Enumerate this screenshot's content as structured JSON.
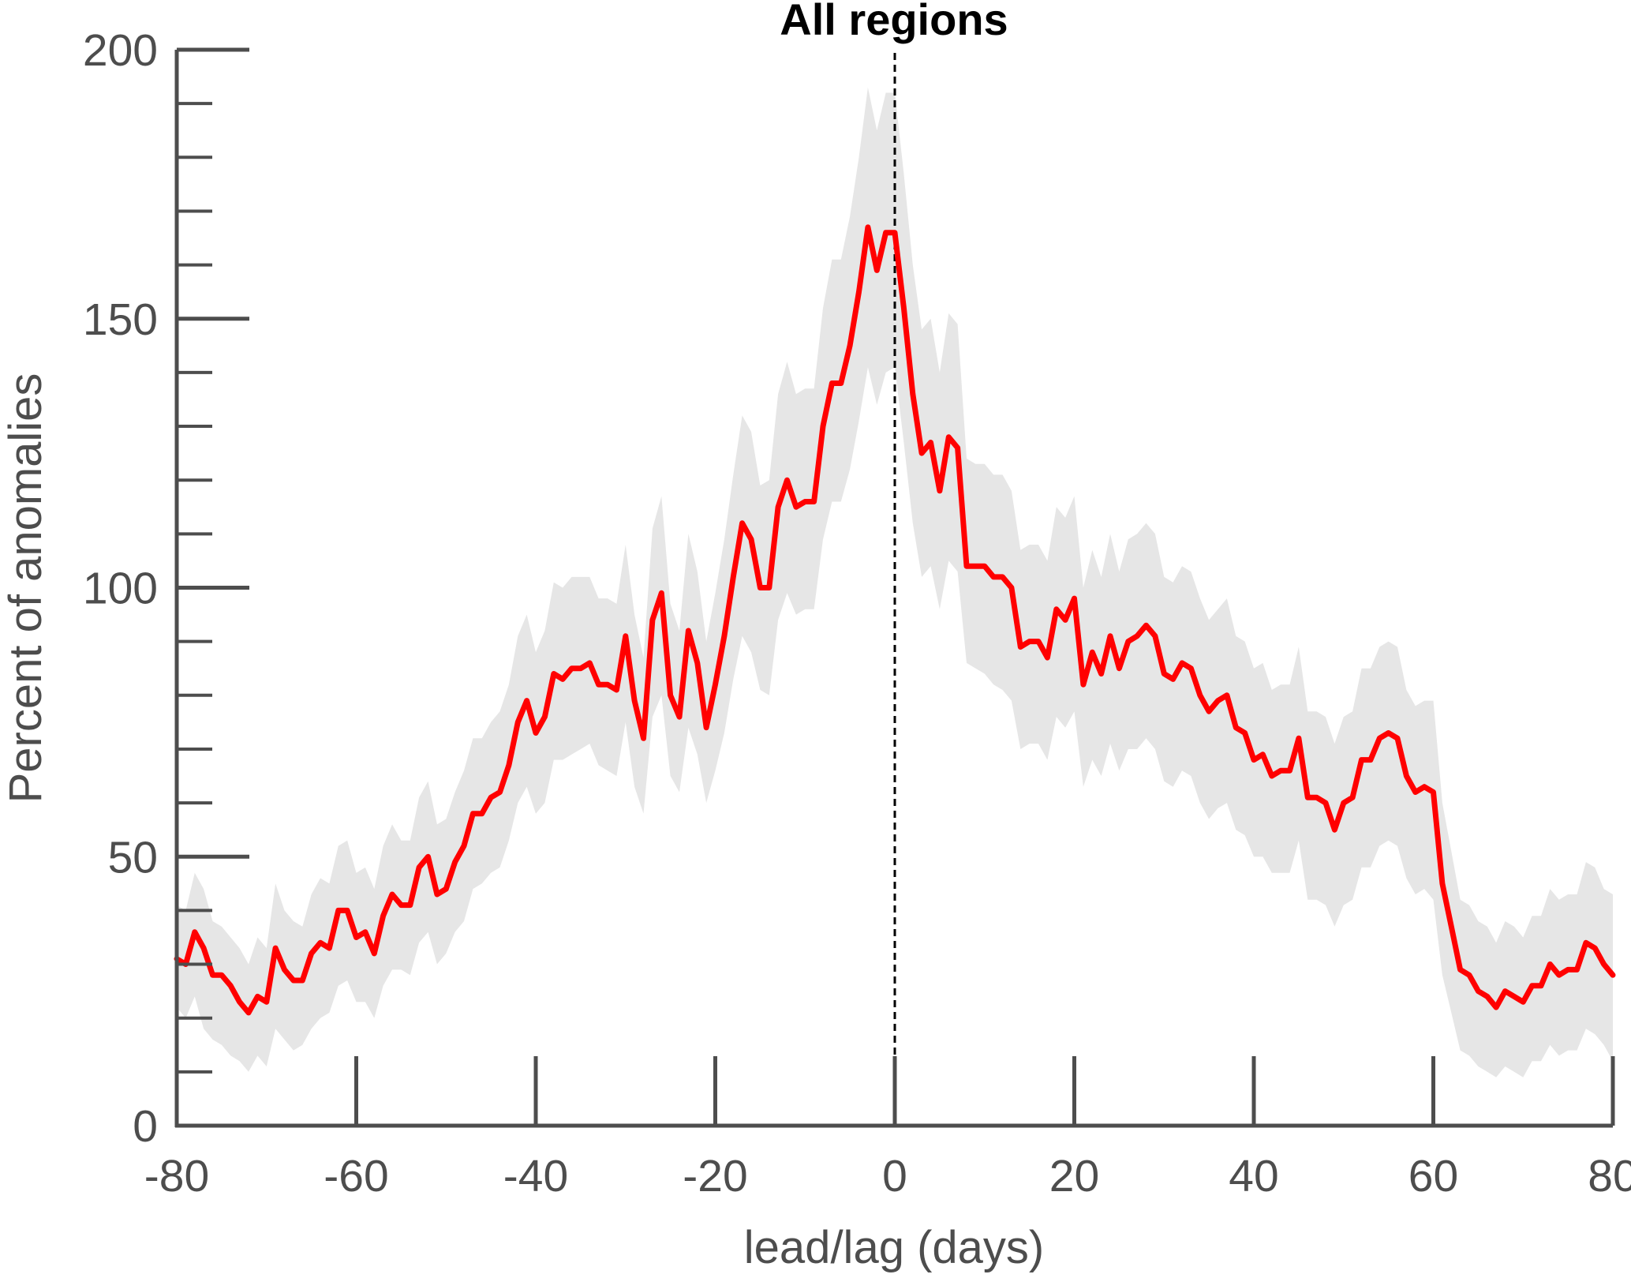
{
  "chart_data": {
    "type": "line",
    "title": "All regions",
    "xlabel": "lead/lag (days)",
    "ylabel": "Percent of anomalies",
    "xlim": [
      -80,
      80
    ],
    "ylim": [
      0,
      200
    ],
    "xticks": [
      -80,
      -60,
      -40,
      -20,
      0,
      20,
      40,
      60,
      80
    ],
    "xtick_labels": [
      "-80",
      "-60",
      "-40",
      "-20",
      "0",
      "20",
      "40",
      "60",
      "80"
    ],
    "yticks": [
      0,
      50,
      100,
      150,
      200
    ],
    "ytick_labels": [
      "0",
      "50",
      "100",
      "150",
      "200"
    ],
    "y_minor_tick_step": 10,
    "grid": false,
    "reference_line": {
      "x": 0,
      "style": "dashed",
      "color": "#000000"
    },
    "series": [
      {
        "line_color": "#ff0000",
        "band_color": "#e6e6e6",
        "x": [
          -80,
          -79,
          -78,
          -77,
          -76,
          -75,
          -74,
          -73,
          -72,
          -71,
          -70,
          -69,
          -68,
          -67,
          -66,
          -65,
          -64,
          -63,
          -62,
          -61,
          -60,
          -59,
          -58,
          -57,
          -56,
          -55,
          -54,
          -53,
          -52,
          -51,
          -50,
          -49,
          -48,
          -47,
          -46,
          -45,
          -44,
          -43,
          -42,
          -41,
          -40,
          -39,
          -38,
          -37,
          -36,
          -35,
          -34,
          -33,
          -32,
          -31,
          -30,
          -29,
          -28,
          -27,
          -26,
          -25,
          -24,
          -23,
          -22,
          -21,
          -20,
          -19,
          -18,
          -17,
          -16,
          -15,
          -14,
          -13,
          -12,
          -11,
          -10,
          -9,
          -8,
          -7,
          -6,
          -5,
          -4,
          -3,
          -2,
          -1,
          0,
          1,
          2,
          3,
          4,
          5,
          6,
          7,
          8,
          9,
          10,
          11,
          12,
          13,
          14,
          15,
          16,
          17,
          18,
          19,
          20,
          21,
          22,
          23,
          24,
          25,
          26,
          27,
          28,
          29,
          30,
          31,
          32,
          33,
          34,
          35,
          36,
          37,
          38,
          39,
          40,
          41,
          42,
          43,
          44,
          45,
          46,
          47,
          48,
          49,
          50,
          51,
          52,
          53,
          54,
          55,
          56,
          57,
          58,
          59,
          60,
          61,
          62,
          63,
          64,
          65,
          66,
          67,
          68,
          69,
          70,
          71,
          72,
          73,
          74,
          75,
          76,
          77,
          78,
          79,
          80
        ],
        "y": [
          31,
          30,
          36,
          33,
          28,
          28,
          26,
          23,
          21,
          24,
          23,
          33,
          29,
          27,
          27,
          32,
          34,
          33,
          40,
          40,
          35,
          36,
          32,
          39,
          43,
          41,
          41,
          48,
          50,
          43,
          44,
          49,
          52,
          58,
          58,
          61,
          62,
          67,
          75,
          79,
          73,
          76,
          84,
          83,
          85,
          85,
          86,
          82,
          82,
          81,
          91,
          79,
          72,
          94,
          99,
          80,
          76,
          92,
          86,
          74,
          82,
          91,
          102,
          112,
          109,
          100,
          100,
          115,
          120,
          115,
          116,
          116,
          130,
          138,
          138,
          145,
          155,
          167,
          159,
          166,
          166,
          152,
          136,
          125,
          127,
          118,
          128,
          126,
          104,
          104,
          104,
          102,
          102,
          100,
          89,
          90,
          90,
          87,
          96,
          94,
          98,
          82,
          88,
          84,
          91,
          85,
          90,
          91,
          93,
          91,
          84,
          83,
          86,
          85,
          80,
          77,
          79,
          80,
          74,
          73,
          68,
          69,
          65,
          66,
          66,
          72,
          61,
          61,
          60,
          55,
          60,
          61,
          68,
          68,
          72,
          73,
          72,
          65,
          62,
          63,
          62,
          45,
          37,
          29,
          28,
          25,
          24,
          22,
          25,
          24,
          23,
          26,
          26,
          30,
          28,
          29,
          29,
          34,
          33,
          30,
          28
        ],
        "lower": [
          22,
          20,
          24,
          18,
          16,
          15,
          13,
          12,
          10,
          13,
          11,
          18,
          16,
          14,
          15,
          18,
          20,
          21,
          26,
          27,
          23,
          23,
          20,
          26,
          29,
          29,
          28,
          34,
          36,
          30,
          32,
          36,
          38,
          44,
          45,
          47,
          48,
          53,
          60,
          63,
          58,
          60,
          68,
          68,
          69,
          70,
          71,
          67,
          66,
          65,
          75,
          63,
          58,
          76,
          80,
          65,
          62,
          74,
          69,
          60,
          66,
          73,
          83,
          91,
          88,
          81,
          80,
          94,
          99,
          95,
          96,
          96,
          109,
          116,
          116,
          122,
          131,
          141,
          134,
          140,
          141,
          127,
          112,
          102,
          104,
          96,
          105,
          103,
          86,
          85,
          84,
          82,
          81,
          79,
          70,
          71,
          71,
          68,
          76,
          74,
          77,
          63,
          68,
          65,
          71,
          66,
          70,
          70,
          72,
          70,
          64,
          63,
          66,
          65,
          60,
          57,
          59,
          60,
          55,
          54,
          50,
          50,
          47,
          47,
          47,
          53,
          42,
          42,
          41,
          37,
          41,
          42,
          48,
          48,
          52,
          53,
          52,
          46,
          43,
          44,
          42,
          28,
          21,
          14,
          13,
          11,
          10,
          9,
          11,
          10,
          9,
          12,
          12,
          15,
          13,
          14,
          14,
          18,
          17,
          15,
          12
        ],
        "upper": [
          41,
          40,
          47,
          44,
          38,
          37,
          35,
          33,
          30,
          35,
          33,
          45,
          40,
          38,
          37,
          43,
          46,
          45,
          52,
          53,
          47,
          48,
          44,
          52,
          56,
          53,
          53,
          61,
          64,
          56,
          57,
          62,
          66,
          72,
          72,
          75,
          77,
          82,
          91,
          95,
          88,
          92,
          101,
          100,
          102,
          102,
          102,
          98,
          98,
          97,
          108,
          95,
          87,
          111,
          117,
          97,
          92,
          110,
          103,
          90,
          99,
          109,
          121,
          132,
          129,
          119,
          120,
          136,
          142,
          136,
          137,
          137,
          152,
          161,
          161,
          169,
          180,
          193,
          185,
          192,
          192,
          177,
          160,
          148,
          150,
          140,
          151,
          149,
          124,
          123,
          123,
          121,
          121,
          118,
          107,
          108,
          108,
          105,
          115,
          113,
          117,
          100,
          107,
          102,
          110,
          103,
          109,
          110,
          112,
          110,
          102,
          101,
          104,
          103,
          98,
          94,
          96,
          98,
          91,
          90,
          85,
          86,
          81,
          82,
          82,
          89,
          77,
          77,
          76,
          71,
          76,
          77,
          85,
          85,
          89,
          90,
          89,
          81,
          78,
          79,
          79,
          60,
          51,
          42,
          41,
          38,
          37,
          34,
          38,
          37,
          35,
          39,
          39,
          44,
          42,
          43,
          43,
          49,
          48,
          44,
          43
        ]
      }
    ]
  }
}
